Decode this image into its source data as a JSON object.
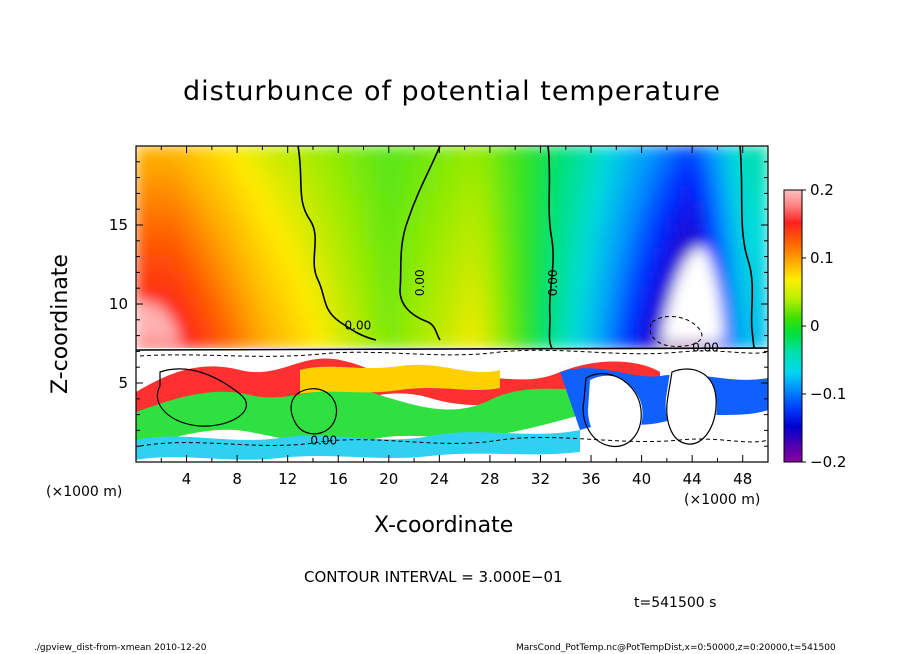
{
  "chart_data": {
    "type": "heatmap",
    "title": "disturbunce of potential temperature",
    "xlabel": "X-coordinate",
    "ylabel": "Z-coordinate",
    "x_unit": "(×1000 m)",
    "xlim": [
      0,
      50
    ],
    "ylim": [
      0,
      20
    ],
    "x_ticks": [
      "4",
      "8",
      "12",
      "16",
      "20",
      "24",
      "28",
      "32",
      "36",
      "40",
      "44",
      "48"
    ],
    "y_ticks": [
      "5",
      "10",
      "15"
    ],
    "colorbar": {
      "range": [
        -0.2,
        0.2
      ],
      "tick_labels": [
        "0.2",
        "0.1",
        "0",
        "−0.1",
        "−0.2"
      ]
    },
    "contour_labels": [
      "0.00",
      "0.00",
      "0.00",
      "0.00",
      "0.00"
    ],
    "upper_columns": [
      {
        "x": 3,
        "value": 0.14
      },
      {
        "x": 10,
        "value": 0.08
      },
      {
        "x": 20,
        "value": 0.02
      },
      {
        "x": 27,
        "value": 0.05
      },
      {
        "x": 36,
        "value": -0.06
      },
      {
        "x": 44,
        "value": -0.2
      },
      {
        "x": 48,
        "value": -0.06
      }
    ]
  },
  "contour_interval": "CONTOUR INTERVAL = 3.000E−01",
  "time_label": "t=541500 s",
  "footer_left": "./gpview_dist-from-xmean 2010-12-20",
  "footer_right": "MarsCond_PotTemp.nc@PotTempDist,x=0:50000,z=0:20000,t=541500"
}
